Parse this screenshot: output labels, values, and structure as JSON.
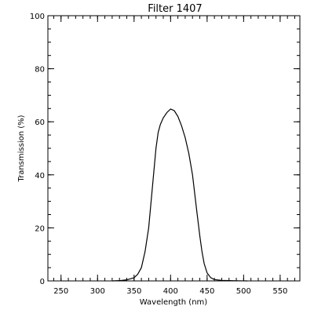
{
  "chart_data": {
    "type": "line",
    "title": "Filter  1407",
    "xlabel": "Wavelength (nm)",
    "ylabel": "Transmission (%)",
    "xlim": [
      232,
      577
    ],
    "ylim": [
      0,
      100
    ],
    "x_ticks": [
      250,
      300,
      350,
      400,
      450,
      500,
      550
    ],
    "y_ticks": [
      0,
      20,
      40,
      60,
      80,
      100
    ],
    "x_minor_step": 10,
    "y_minor_step": 5,
    "grid": false,
    "line_color": "#000000",
    "series": [
      {
        "x": [
          320,
          330,
          340,
          350,
          355,
          360,
          365,
          370,
          373,
          376,
          380,
          383,
          386,
          390,
          395,
          400,
          405,
          410,
          415,
          420,
          425,
          430,
          433,
          436,
          440,
          443,
          446,
          450,
          455,
          460,
          470,
          480,
          490,
          500,
          505
        ],
        "y": [
          0,
          0.1,
          0.4,
          1.2,
          2.5,
          5,
          11,
          20,
          29,
          38,
          50,
          56,
          59,
          61.5,
          63.5,
          64.8,
          64.2,
          62,
          58.5,
          54,
          48,
          40,
          33,
          26,
          17,
          11,
          6.5,
          3,
          1.2,
          0.5,
          0.2,
          0.1,
          0.05,
          0.02,
          0
        ]
      }
    ]
  }
}
